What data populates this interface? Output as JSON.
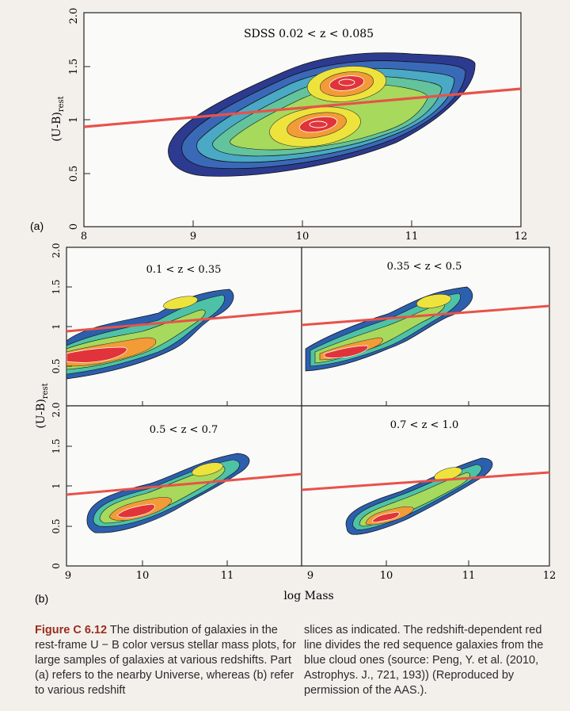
{
  "panel_a": {
    "label": "(a)",
    "title": "SDSS 0.02 < z < 0.085",
    "x_ticks": [
      "8",
      "9",
      "10",
      "11",
      "12"
    ],
    "y_ticks": [
      "0",
      "0.5",
      "1",
      "1.5",
      "2.0"
    ],
    "y_label": "(U-B)",
    "y_label_sub": "rest"
  },
  "panel_b": {
    "label": "(b)",
    "x_label": "log Mass",
    "y_label": "(U-B)",
    "y_label_sub": "rest",
    "bottom_x_ticks": [
      "9",
      "10",
      "11",
      "9",
      "10",
      "11",
      "12"
    ],
    "subpanels": [
      {
        "title": "0.1 < z < 0.35"
      },
      {
        "title": "0.35 < z < 0.5"
      },
      {
        "title": "0.5 < z < 0.7"
      },
      {
        "title": "0.7 < z < 1.0"
      }
    ],
    "top_y_ticks": [
      "0.5",
      "1",
      "1.5",
      "2.0"
    ],
    "bottom_y_ticks": [
      "0",
      "0.5",
      "1",
      "1.5",
      "2.0"
    ]
  },
  "caption": {
    "figure_label": "Figure C 6.12",
    "left_text": "The distribution of galaxies in the rest-frame U − B color versus stellar mass plots, for large samples of galaxies at various redshifts. Part (a) refers to the nearby Universe, whereas (b) refer to various redshift",
    "right_text": "slices as indicated. The redshift-dependent red line divides the red sequence galaxies from the blue cloud ones (source: Peng, Y. et al. (2010, Astrophys. J., 721, 193)) (Reproduced by permission of the AAS.)."
  },
  "colors": {
    "divider_line": "#e8524a",
    "density_low": "#2b3f93",
    "density_mid": "#4ec2a6",
    "density_high": "#f1e43a",
    "density_peak": "#e0343a"
  }
}
